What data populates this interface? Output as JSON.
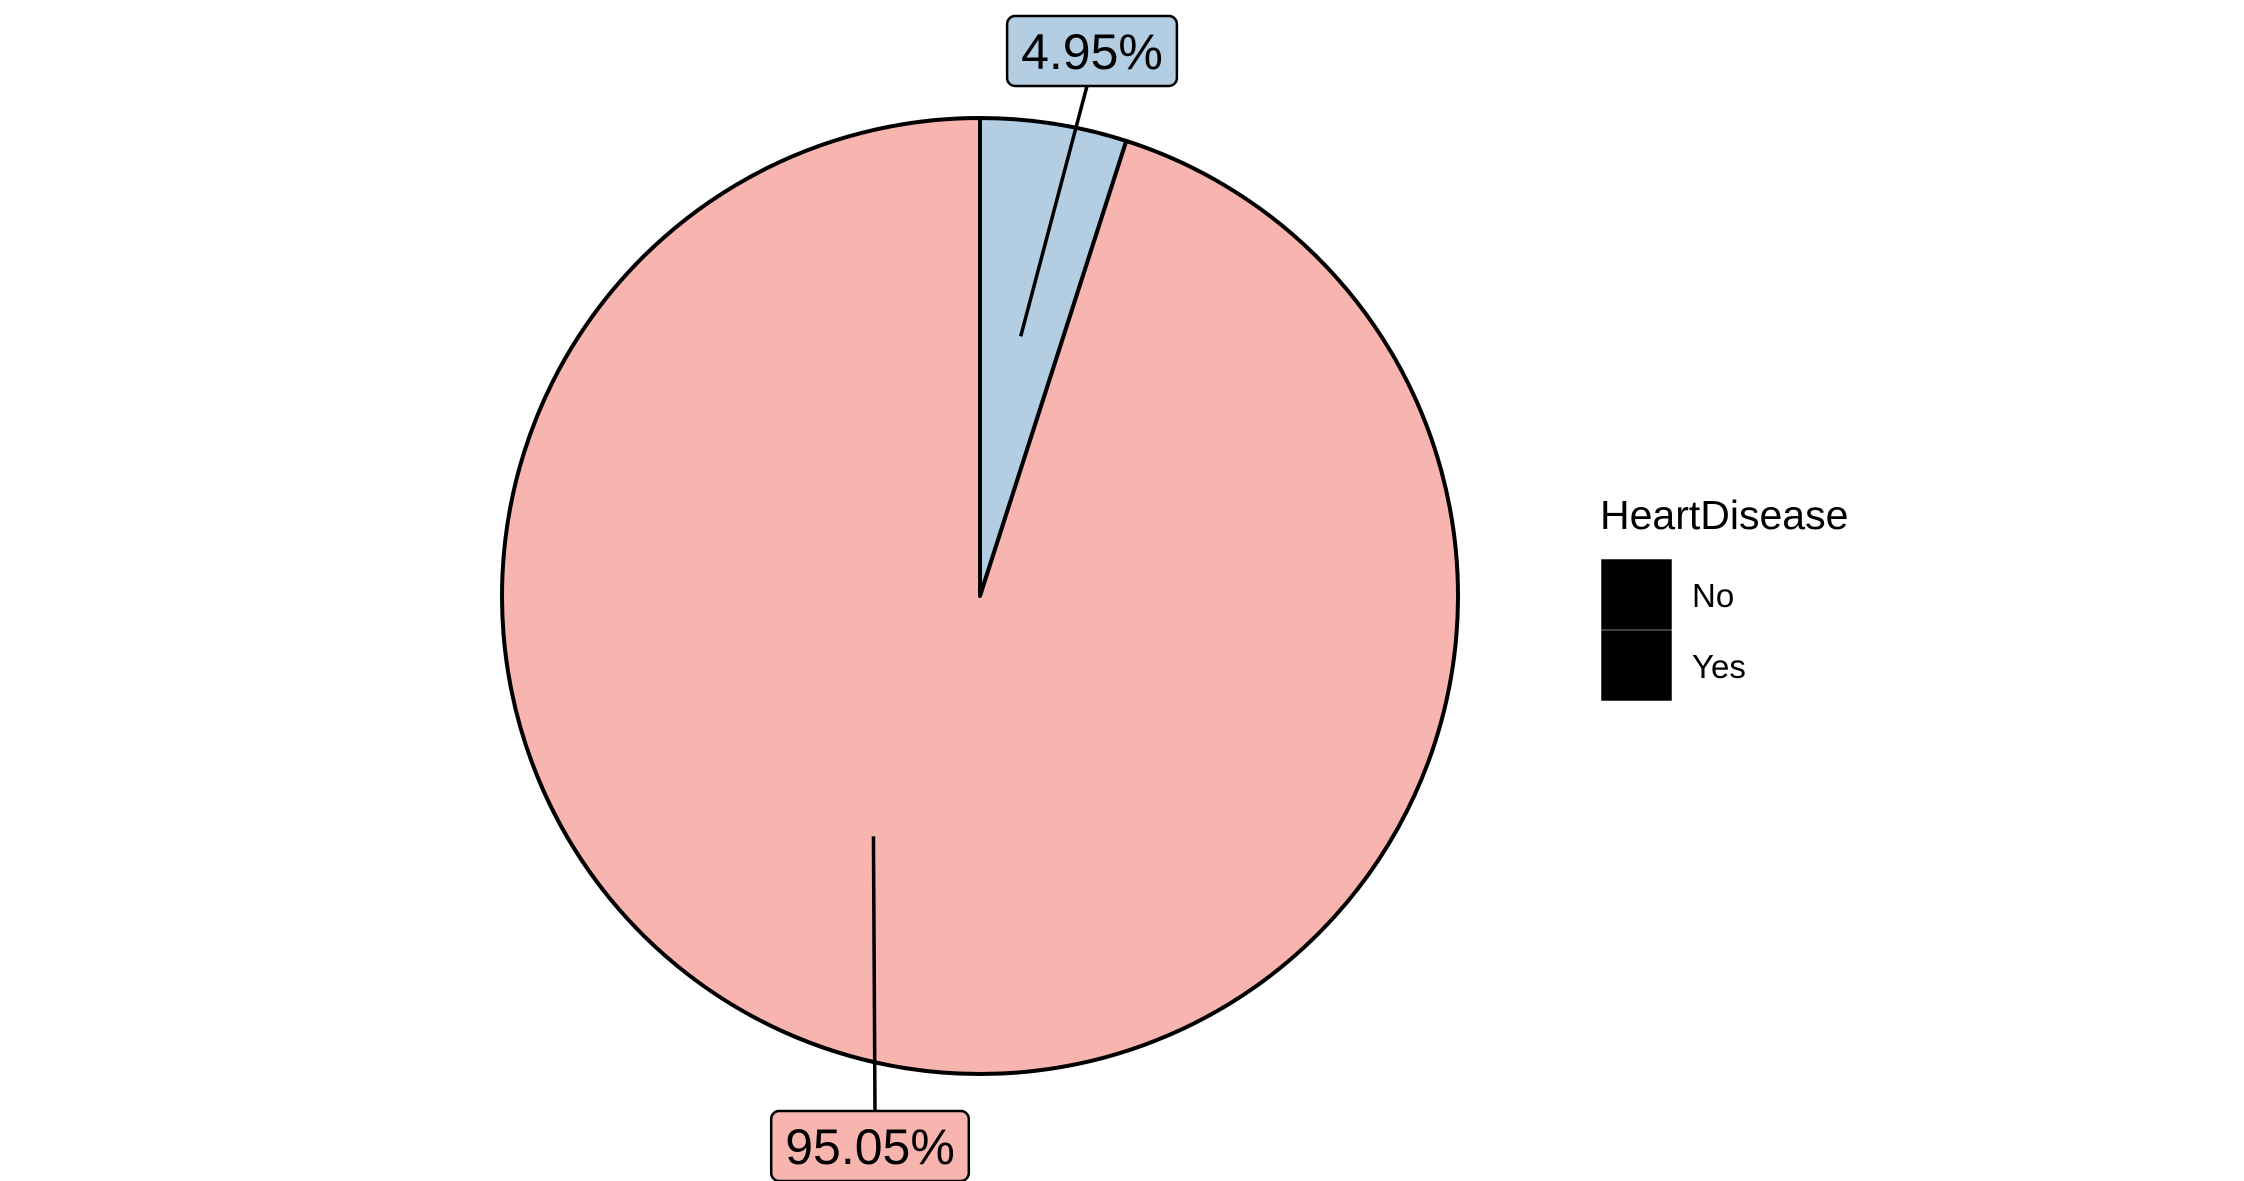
{
  "chart_data": {
    "type": "pie",
    "categories": [
      "No",
      "Yes"
    ],
    "values": [
      95.05,
      4.95
    ],
    "labels": [
      "95.05%",
      "4.95%"
    ],
    "colors": [
      "#F8B4AE",
      "#B3CDE3"
    ],
    "legend_title": "HeartDisease",
    "legend_position": "right",
    "start_angle": "12 o'clock",
    "direction": "clockwise",
    "title": "",
    "xlabel": "",
    "ylabel": ""
  }
}
